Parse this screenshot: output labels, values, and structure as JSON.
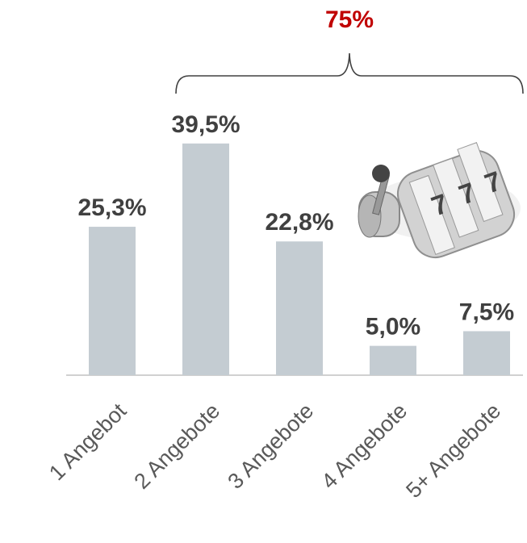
{
  "chart_data": {
    "type": "bar",
    "categories": [
      "1 Angebot",
      "2 Angebote",
      "3 Angebote",
      "4 Angebote",
      "5+ Angebote"
    ],
    "values": [
      25.3,
      39.5,
      22.8,
      5.0,
      7.5
    ],
    "value_labels": [
      "25,3%",
      "39,5%",
      "22,8%",
      "5,0%",
      "7,5%"
    ],
    "color": "#c4ccd2",
    "annotation": "75%"
  }
}
